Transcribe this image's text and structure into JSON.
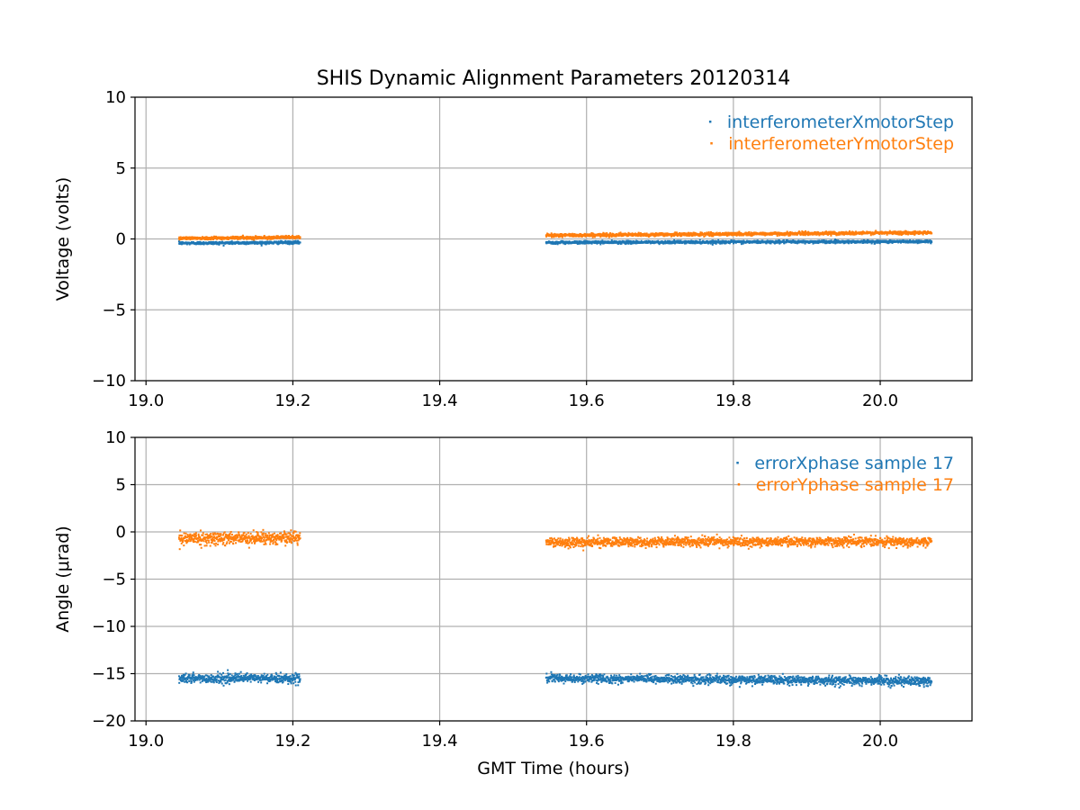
{
  "chart_data": [
    {
      "type": "scatter",
      "title": "SHIS Dynamic Alignment Parameters 20120314",
      "xlabel": "",
      "ylabel": "Voltage (volts)",
      "xlim": [
        18.985,
        20.125
      ],
      "ylim": [
        -10,
        10
      ],
      "xticks": [
        19.0,
        19.2,
        19.4,
        19.6,
        19.8,
        20.0
      ],
      "xtick_labels": [
        "19.0",
        "19.2",
        "19.4",
        "19.6",
        "19.8",
        "20.0"
      ],
      "yticks": [
        -10,
        -5,
        0,
        5,
        10
      ],
      "ytick_labels": [
        "−10",
        "−5",
        "0",
        "5",
        "10"
      ],
      "grid": true,
      "legend_position": "top-right",
      "series": [
        {
          "name": "interferometerXmotorStep",
          "color": "#1f77b4",
          "segments": [
            {
              "x_start": 19.045,
              "x_end": 19.21,
              "y_start": -0.3,
              "y_end": -0.25,
              "spread": 0.12
            },
            {
              "x_start": 19.545,
              "x_end": 20.07,
              "y_start": -0.25,
              "y_end": -0.18,
              "spread": 0.12
            }
          ]
        },
        {
          "name": "interferometerYmotorStep",
          "color": "#ff7f0e",
          "segments": [
            {
              "x_start": 19.045,
              "x_end": 19.21,
              "y_start": 0.05,
              "y_end": 0.12,
              "spread": 0.12
            },
            {
              "x_start": 19.545,
              "x_end": 20.07,
              "y_start": 0.25,
              "y_end": 0.45,
              "spread": 0.14
            }
          ]
        }
      ]
    },
    {
      "type": "scatter",
      "title": "",
      "xlabel": "GMT Time (hours)",
      "ylabel": "Angle (μrad)",
      "xlim": [
        18.985,
        20.125
      ],
      "ylim": [
        -20,
        10
      ],
      "xticks": [
        19.0,
        19.2,
        19.4,
        19.6,
        19.8,
        20.0
      ],
      "xtick_labels": [
        "19.0",
        "19.2",
        "19.4",
        "19.6",
        "19.8",
        "20.0"
      ],
      "yticks": [
        -20,
        -15,
        -10,
        -5,
        0,
        5,
        10
      ],
      "ytick_labels": [
        "−20",
        "−15",
        "−10",
        "−5",
        "0",
        "5",
        "10"
      ],
      "grid": true,
      "legend_position": "top-right",
      "series": [
        {
          "name": "errorXphase sample 17",
          "color": "#1f77b4",
          "segments": [
            {
              "x_start": 19.045,
              "x_end": 19.21,
              "y_start": -15.5,
              "y_end": -15.5,
              "spread": 0.6
            },
            {
              "x_start": 19.545,
              "x_end": 20.07,
              "y_start": -15.5,
              "y_end": -15.8,
              "spread": 0.55
            }
          ]
        },
        {
          "name": "errorYphase sample 17",
          "color": "#ff7f0e",
          "segments": [
            {
              "x_start": 19.045,
              "x_end": 19.21,
              "y_start": -0.7,
              "y_end": -0.6,
              "spread": 0.8
            },
            {
              "x_start": 19.545,
              "x_end": 20.07,
              "y_start": -1.1,
              "y_end": -1.0,
              "spread": 0.6
            }
          ]
        }
      ]
    }
  ]
}
